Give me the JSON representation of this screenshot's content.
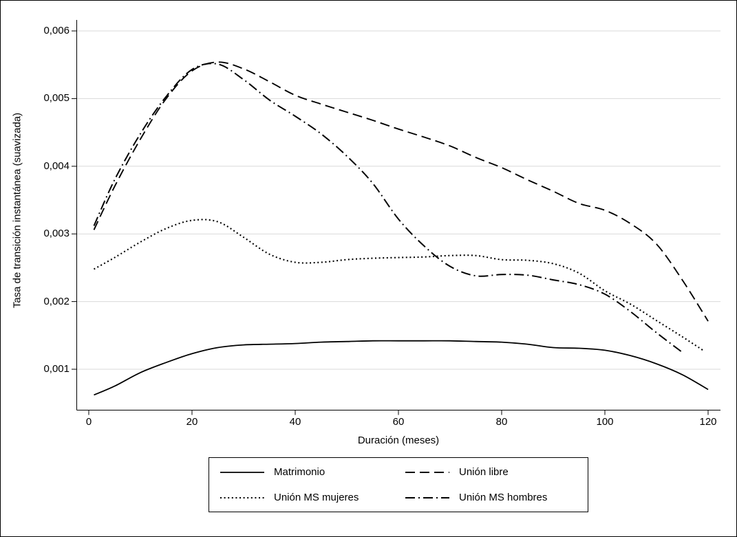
{
  "figure": {
    "y_axis_label": "Tasa de transición instantánea (suavizada)",
    "x_axis_label": "Duración (meses)"
  },
  "colors": {
    "line": "#000000",
    "grid": "#d9d9d9",
    "background": "#ffffff",
    "border": "#000000"
  },
  "chart_data": {
    "type": "line",
    "title": "",
    "xlabel": "Duración (meses)",
    "ylabel": "Tasa de transición instantánea (suavizada)",
    "xlim": [
      0,
      120
    ],
    "ylim": [
      0.0004,
      0.0062
    ],
    "grid": "horizontal",
    "legend_position": "bottom",
    "x_ticks": [
      {
        "value": 0,
        "label": "0"
      },
      {
        "value": 20,
        "label": "20"
      },
      {
        "value": 40,
        "label": "40"
      },
      {
        "value": 60,
        "label": "60"
      },
      {
        "value": 80,
        "label": "80"
      },
      {
        "value": 100,
        "label": "100"
      },
      {
        "value": 120,
        "label": "120"
      }
    ],
    "y_ticks": [
      {
        "value": 0.001,
        "label": "0,001"
      },
      {
        "value": 0.002,
        "label": "0,002"
      },
      {
        "value": 0.003,
        "label": "0,003"
      },
      {
        "value": 0.004,
        "label": "0,004"
      },
      {
        "value": 0.005,
        "label": "0,005"
      },
      {
        "value": 0.006,
        "label": "0,006"
      }
    ],
    "series": [
      {
        "id": "matrimonio",
        "name": "Matrimonio",
        "style": "solid",
        "color": "#000000",
        "x": [
          1,
          5,
          10,
          15,
          20,
          25,
          30,
          35,
          40,
          45,
          50,
          55,
          60,
          65,
          70,
          75,
          80,
          85,
          90,
          95,
          100,
          105,
          110,
          115,
          120
        ],
        "y": [
          0.00062,
          0.00075,
          0.00095,
          0.0011,
          0.00123,
          0.00132,
          0.00136,
          0.00137,
          0.00138,
          0.0014,
          0.00141,
          0.00142,
          0.00142,
          0.00142,
          0.00142,
          0.00141,
          0.0014,
          0.00137,
          0.00132,
          0.00131,
          0.00128,
          0.0012,
          0.00108,
          0.00092,
          0.0007
        ]
      },
      {
        "id": "union-libre",
        "name": "Unión libre",
        "style": "dashed",
        "color": "#000000",
        "x": [
          1,
          5,
          10,
          15,
          20,
          25,
          30,
          35,
          40,
          45,
          50,
          55,
          60,
          65,
          70,
          75,
          80,
          85,
          90,
          95,
          100,
          105,
          110,
          115,
          120
        ],
        "y": [
          0.00306,
          0.0037,
          0.0044,
          0.005,
          0.00541,
          0.00554,
          0.00544,
          0.00525,
          0.00505,
          0.00492,
          0.0048,
          0.00468,
          0.00455,
          0.00443,
          0.0043,
          0.00413,
          0.00398,
          0.0038,
          0.00363,
          0.00345,
          0.00335,
          0.00315,
          0.00285,
          0.00232,
          0.00171
        ]
      },
      {
        "id": "union-ms-mujeres",
        "name": "Unión MS mujeres",
        "style": "dotted",
        "color": "#000000",
        "x": [
          1,
          5,
          10,
          15,
          20,
          25,
          30,
          35,
          40,
          45,
          50,
          55,
          60,
          65,
          70,
          75,
          80,
          85,
          90,
          95,
          100,
          105,
          110,
          115,
          119
        ],
        "y": [
          0.00248,
          0.00265,
          0.00288,
          0.00308,
          0.0032,
          0.00318,
          0.00295,
          0.0027,
          0.00258,
          0.00258,
          0.00262,
          0.00264,
          0.00265,
          0.00266,
          0.00268,
          0.00268,
          0.00262,
          0.00261,
          0.00256,
          0.00242,
          0.00216,
          0.00196,
          0.00172,
          0.00148,
          0.00128
        ]
      },
      {
        "id": "union-ms-hombres",
        "name": "Unión MS hombres",
        "style": "dash-dot",
        "color": "#000000",
        "x": [
          1,
          5,
          10,
          15,
          20,
          25,
          30,
          35,
          40,
          45,
          50,
          55,
          60,
          65,
          70,
          75,
          80,
          85,
          90,
          95,
          100,
          105,
          110,
          115
        ],
        "y": [
          0.00312,
          0.0038,
          0.00448,
          0.00503,
          0.00543,
          0.00551,
          0.00528,
          0.00498,
          0.00474,
          0.00448,
          0.00415,
          0.00375,
          0.00322,
          0.00282,
          0.00252,
          0.00238,
          0.0024,
          0.00239,
          0.00232,
          0.00225,
          0.00211,
          0.00185,
          0.00154,
          0.00125
        ]
      }
    ]
  }
}
